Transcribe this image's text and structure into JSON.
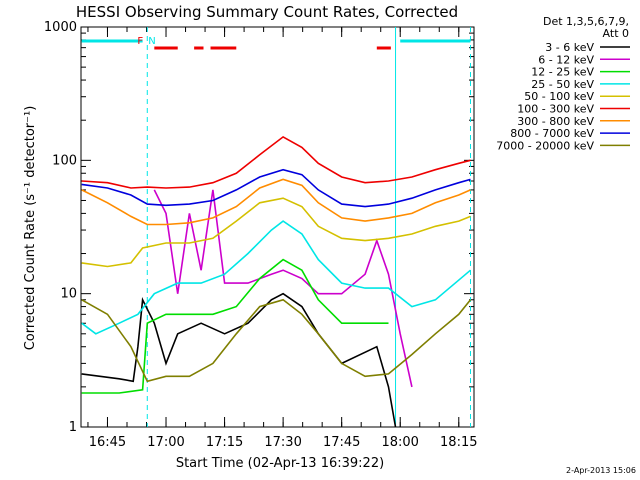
{
  "chart_data": {
    "type": "line",
    "title": "HESSI Observing Summary Count Rates, Corrected",
    "xlabel": "Start Time (02-Apr-13 16:39:22)",
    "ylabel": "Corrected Count Rate (s⁻¹ detector⁻¹)",
    "ylog": true,
    "xlim_minutes": [
      16.637,
      18.315
    ],
    "ylim": [
      1,
      1000
    ],
    "x_ticks": [
      {
        "label": "16:45",
        "t": 16.75
      },
      {
        "label": "17:00",
        "t": 17.0
      },
      {
        "label": "17:15",
        "t": 17.25
      },
      {
        "label": "17:30",
        "t": 17.5
      },
      {
        "label": "17:45",
        "t": 17.75
      },
      {
        "label": "18:00",
        "t": 18.0
      },
      {
        "label": "18:15",
        "t": 18.25
      }
    ],
    "y_ticks": [
      {
        "label": "1",
        "v": 1
      },
      {
        "label": "10",
        "v": 10
      },
      {
        "label": "100",
        "v": 100
      },
      {
        "label": "1000",
        "v": 1000
      }
    ],
    "legend_header": [
      "Det 1,3,5,6,7,9,",
      "Att 0"
    ],
    "legend_placement": "right",
    "series": [
      {
        "name": "3 - 6 keV",
        "color": "#000000",
        "values": [
          [
            16.64,
            2.5
          ],
          [
            16.8,
            2.3
          ],
          [
            16.86,
            2.2
          ],
          [
            16.88,
            4
          ],
          [
            16.9,
            9
          ],
          [
            16.95,
            6
          ],
          [
            17.0,
            3
          ],
          [
            17.05,
            5
          ],
          [
            17.15,
            6
          ],
          [
            17.25,
            5
          ],
          [
            17.35,
            6
          ],
          [
            17.45,
            9
          ],
          [
            17.5,
            10
          ],
          [
            17.58,
            8
          ],
          [
            17.65,
            5
          ],
          [
            17.75,
            3
          ],
          [
            17.9,
            4
          ],
          [
            17.95,
            2
          ],
          [
            17.98,
            1
          ]
        ]
      },
      {
        "name": "6 - 12 keV",
        "color": "#cc00cc",
        "values": [
          [
            16.95,
            60
          ],
          [
            17.0,
            40
          ],
          [
            17.05,
            10
          ],
          [
            17.1,
            40
          ],
          [
            17.15,
            15
          ],
          [
            17.2,
            60
          ],
          [
            17.25,
            12
          ],
          [
            17.35,
            12
          ],
          [
            17.45,
            14
          ],
          [
            17.5,
            15
          ],
          [
            17.58,
            13
          ],
          [
            17.65,
            10
          ],
          [
            17.75,
            10
          ],
          [
            17.85,
            14
          ],
          [
            17.9,
            25
          ],
          [
            17.95,
            14
          ],
          [
            18.0,
            5
          ],
          [
            18.05,
            2
          ]
        ]
      },
      {
        "name": "12 - 25 keV",
        "color": "#00dd00",
        "values": [
          [
            16.64,
            1.8
          ],
          [
            16.8,
            1.8
          ],
          [
            16.9,
            1.9
          ],
          [
            16.92,
            6
          ],
          [
            17.0,
            7
          ],
          [
            17.1,
            7
          ],
          [
            17.2,
            7
          ],
          [
            17.3,
            8
          ],
          [
            17.4,
            13
          ],
          [
            17.5,
            18
          ],
          [
            17.58,
            15
          ],
          [
            17.65,
            9
          ],
          [
            17.75,
            6
          ],
          [
            17.85,
            6
          ],
          [
            17.95,
            6
          ]
        ]
      },
      {
        "name": "25 - 50 keV",
        "color": "#00e6e6",
        "values": [
          [
            16.64,
            6
          ],
          [
            16.7,
            5
          ],
          [
            16.8,
            6
          ],
          [
            16.88,
            7
          ],
          [
            16.95,
            10
          ],
          [
            17.05,
            12
          ],
          [
            17.15,
            12
          ],
          [
            17.25,
            14
          ],
          [
            17.35,
            20
          ],
          [
            17.45,
            30
          ],
          [
            17.5,
            35
          ],
          [
            17.58,
            28
          ],
          [
            17.65,
            18
          ],
          [
            17.75,
            12
          ],
          [
            17.85,
            11
          ],
          [
            17.95,
            11
          ],
          [
            18.05,
            8
          ],
          [
            18.15,
            9
          ],
          [
            18.3,
            15
          ]
        ]
      },
      {
        "name": "50 - 100 keV",
        "color": "#d4c000",
        "values": [
          [
            16.64,
            17
          ],
          [
            16.75,
            16
          ],
          [
            16.85,
            17
          ],
          [
            16.9,
            22
          ],
          [
            17.0,
            24
          ],
          [
            17.1,
            24
          ],
          [
            17.2,
            26
          ],
          [
            17.3,
            35
          ],
          [
            17.4,
            48
          ],
          [
            17.5,
            52
          ],
          [
            17.58,
            45
          ],
          [
            17.65,
            32
          ],
          [
            17.75,
            26
          ],
          [
            17.85,
            25
          ],
          [
            17.95,
            26
          ],
          [
            18.05,
            28
          ],
          [
            18.15,
            32
          ],
          [
            18.25,
            35
          ],
          [
            18.3,
            38
          ]
        ]
      },
      {
        "name": "100 - 300 keV",
        "color": "#ee0000",
        "values": [
          [
            16.64,
            70
          ],
          [
            16.75,
            68
          ],
          [
            16.85,
            62
          ],
          [
            16.92,
            63
          ],
          [
            17.0,
            62
          ],
          [
            17.1,
            63
          ],
          [
            17.2,
            68
          ],
          [
            17.3,
            80
          ],
          [
            17.4,
            110
          ],
          [
            17.5,
            150
          ],
          [
            17.58,
            125
          ],
          [
            17.65,
            95
          ],
          [
            17.75,
            75
          ],
          [
            17.85,
            68
          ],
          [
            17.95,
            70
          ],
          [
            18.05,
            75
          ],
          [
            18.15,
            85
          ],
          [
            18.25,
            95
          ],
          [
            18.3,
            100
          ]
        ]
      },
      {
        "name": "300 - 800 keV",
        "color": "#ff8c00",
        "values": [
          [
            16.64,
            60
          ],
          [
            16.75,
            48
          ],
          [
            16.85,
            38
          ],
          [
            16.92,
            33
          ],
          [
            17.0,
            33
          ],
          [
            17.1,
            34
          ],
          [
            17.2,
            37
          ],
          [
            17.3,
            45
          ],
          [
            17.4,
            62
          ],
          [
            17.5,
            72
          ],
          [
            17.58,
            65
          ],
          [
            17.65,
            48
          ],
          [
            17.75,
            37
          ],
          [
            17.85,
            35
          ],
          [
            17.95,
            37
          ],
          [
            18.05,
            40
          ],
          [
            18.15,
            48
          ],
          [
            18.25,
            55
          ],
          [
            18.3,
            60
          ]
        ]
      },
      {
        "name": "800 - 7000 keV",
        "color": "#0000dd",
        "values": [
          [
            16.64,
            66
          ],
          [
            16.75,
            62
          ],
          [
            16.85,
            55
          ],
          [
            16.92,
            47
          ],
          [
            17.0,
            46
          ],
          [
            17.1,
            47
          ],
          [
            17.2,
            50
          ],
          [
            17.3,
            60
          ],
          [
            17.4,
            75
          ],
          [
            17.5,
            85
          ],
          [
            17.58,
            78
          ],
          [
            17.65,
            60
          ],
          [
            17.75,
            47
          ],
          [
            17.85,
            45
          ],
          [
            17.95,
            47
          ],
          [
            18.05,
            52
          ],
          [
            18.15,
            60
          ],
          [
            18.25,
            68
          ],
          [
            18.3,
            72
          ]
        ]
      },
      {
        "name": "7000 - 20000 keV",
        "color": "#7f7f00",
        "values": [
          [
            16.64,
            9
          ],
          [
            16.75,
            7
          ],
          [
            16.85,
            4
          ],
          [
            16.92,
            2.2
          ],
          [
            17.0,
            2.4
          ],
          [
            17.1,
            2.4
          ],
          [
            17.2,
            3
          ],
          [
            17.3,
            5
          ],
          [
            17.4,
            8
          ],
          [
            17.5,
            9
          ],
          [
            17.58,
            7
          ],
          [
            17.65,
            5
          ],
          [
            17.75,
            3
          ],
          [
            17.85,
            2.4
          ],
          [
            17.95,
            2.5
          ],
          [
            18.05,
            3.5
          ],
          [
            18.15,
            5
          ],
          [
            18.25,
            7
          ],
          [
            18.3,
            9
          ]
        ]
      }
    ],
    "markers": {
      "night_bar": {
        "color": "#00e6e6",
        "ranges": [
          [
            16.64,
            16.9
          ],
          [
            18.0,
            18.3
          ]
        ]
      },
      "vertical_lines": [
        {
          "t": 16.92,
          "style": "dashed",
          "color": "#00e6e6"
        },
        {
          "t": 17.98,
          "style": "solid",
          "color": "#00e6e6"
        },
        {
          "t": 18.3,
          "style": "dashed",
          "color": "#00e6e6"
        }
      ],
      "flare_bar": {
        "color": "#ee0000",
        "ranges": [
          [
            16.95,
            17.05
          ],
          [
            17.12,
            17.16
          ],
          [
            17.19,
            17.3
          ],
          [
            17.9,
            17.96
          ]
        ]
      },
      "labels": [
        {
          "text": "F",
          "t": 16.89,
          "color": "#ee0000"
        },
        {
          "text": "N",
          "t": 16.94,
          "color": "#00e6e6"
        }
      ]
    }
  },
  "footer_text": "2-Apr-2013 15:06"
}
